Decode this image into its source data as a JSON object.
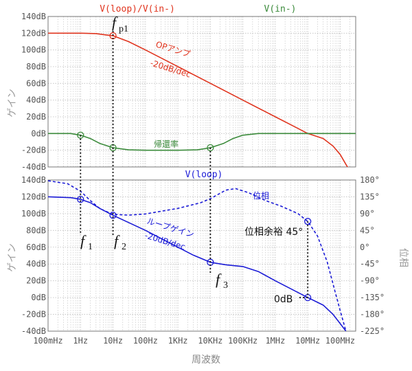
{
  "colors": {
    "red": "#e0341e",
    "green": "#3a8a3a",
    "blue": "#1a1ad6",
    "grid": "#bdbdbd",
    "axis": "#777777",
    "tick": "#555555",
    "black": "#111111"
  },
  "chart_data": [
    {
      "type": "line",
      "panel": "top",
      "title_left": "V(loop)/V(in-)",
      "title_right": "V(in-)",
      "x_scale": "log",
      "x_range_hz": [
        0.1,
        300000000
      ],
      "ylim": [
        -40,
        140
      ],
      "y_ticks": [
        "140dB",
        "120dB",
        "100dB",
        "80dB",
        "60dB",
        "40dB",
        "20dB",
        "0dB",
        "-20dB",
        "-40dB"
      ],
      "ylabel": "ゲイン",
      "grid": true,
      "series": [
        {
          "name": "V(loop)/V(in-)",
          "color": "red",
          "points_hz_db": [
            [
              0.1,
              120
            ],
            [
              1,
              120
            ],
            [
              3,
              119.5
            ],
            [
              6,
              118
            ],
            [
              10,
              117
            ],
            [
              30,
              110
            ],
            [
              100,
              100
            ],
            [
              1000,
              80
            ],
            [
              10000,
              60
            ],
            [
              100000,
              40
            ],
            [
              1000000,
              20
            ],
            [
              3000000,
              10.5
            ],
            [
              10000000,
              0
            ],
            [
              30000000,
              -6
            ],
            [
              60000000,
              -15
            ],
            [
              100000000,
              -25
            ],
            [
              150000000,
              -37
            ],
            [
              180000000,
              -42
            ]
          ]
        },
        {
          "name": "V(in-)",
          "color": "green",
          "points_hz_db": [
            [
              0.1,
              0
            ],
            [
              0.5,
              0
            ],
            [
              1,
              -2
            ],
            [
              2,
              -6
            ],
            [
              4,
              -12
            ],
            [
              10,
              -17
            ],
            [
              30,
              -19.5
            ],
            [
              100,
              -20
            ],
            [
              1000,
              -20
            ],
            [
              4000,
              -19.5
            ],
            [
              10000,
              -17
            ],
            [
              25000,
              -12
            ],
            [
              50000,
              -6
            ],
            [
              100000,
              -2
            ],
            [
              300000,
              0
            ],
            [
              100000000,
              0
            ],
            [
              300000000,
              0
            ]
          ]
        }
      ],
      "annotations": {
        "fp1": "f",
        "fp1_sub": "p1",
        "opamp_line1": "OPアンプ",
        "opamp_line2": "-20dB/dec",
        "feedback": "帰還率"
      }
    },
    {
      "type": "line",
      "panel": "bottom",
      "title": "V(loop)",
      "x_scale": "log",
      "xlabel": "周波数",
      "x_ticks": [
        "100mHz",
        "1Hz",
        "10Hz",
        "100Hz",
        "1KHz",
        "10KHz",
        "100KHz",
        "1MHz",
        "10MHz",
        "100MHz"
      ],
      "ylim": [
        -40,
        140
      ],
      "y_ticks": [
        "140dB",
        "120dB",
        "100dB",
        "80dB",
        "60dB",
        "40dB",
        "20dB",
        "0dB",
        "-20dB",
        "-40dB"
      ],
      "ylabel": "ゲイン",
      "y2lim": [
        -225,
        180
      ],
      "y2_ticks": [
        "180°",
        "135°",
        "90°",
        "45°",
        "0°",
        "-45°",
        "-90°",
        "-135°",
        "-180°",
        "-225°"
      ],
      "y2label": "位相",
      "grid": true,
      "series": [
        {
          "name": "V(loop)",
          "color": "blue",
          "style": "solid",
          "points_hz_db": [
            [
              0.1,
              120
            ],
            [
              0.5,
              119
            ],
            [
              1,
              117
            ],
            [
              2,
              113
            ],
            [
              4,
              106
            ],
            [
              10,
              98
            ],
            [
              100,
              80
            ],
            [
              1000,
              60
            ],
            [
              3000,
              50.5
            ],
            [
              10000,
              42
            ],
            [
              30000,
              39
            ],
            [
              100000,
              37
            ],
            [
              300000,
              31
            ],
            [
              1000000,
              20
            ],
            [
              10000000,
              0
            ],
            [
              30000000,
              -9
            ],
            [
              60000000,
              -20
            ],
            [
              100000000,
              -31
            ],
            [
              150000000,
              -40
            ]
          ]
        },
        {
          "name": "位相",
          "color": "blue",
          "style": "dashed",
          "points_hz_deg": [
            [
              0.1,
              178
            ],
            [
              0.4,
              170
            ],
            [
              1,
              150
            ],
            [
              2,
              125
            ],
            [
              4,
              103
            ],
            [
              10,
              88
            ],
            [
              30,
              86
            ],
            [
              100,
              89
            ],
            [
              1000,
              104
            ],
            [
              5000,
              119
            ],
            [
              10000,
              130
            ],
            [
              30000,
              153
            ],
            [
              60000,
              157
            ],
            [
              150000,
              146
            ],
            [
              500000,
              125
            ],
            [
              1500000,
              110
            ],
            [
              5000000,
              90
            ],
            [
              10000000,
              69
            ],
            [
              20000000,
              30
            ],
            [
              40000000,
              -40
            ],
            [
              70000000,
              -120
            ],
            [
              100000000,
              -170
            ],
            [
              150000000,
              -225
            ]
          ]
        }
      ],
      "annotations": {
        "phase_label": "位相",
        "loop_gain_line1": "ループゲイン",
        "loop_gain_line2": "-20dB/dec",
        "phase_margin": "位相余裕 45°",
        "zero_db": "0dB",
        "f1": "f",
        "f1_sub": "1",
        "f2": "f",
        "f2_sub": "2",
        "f3": "f",
        "f3_sub": "3"
      }
    }
  ]
}
